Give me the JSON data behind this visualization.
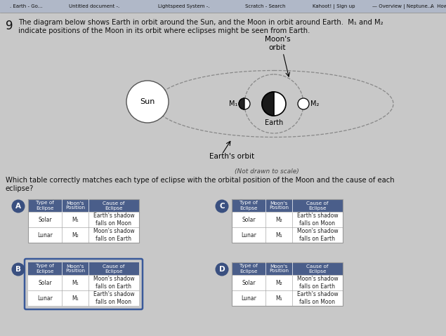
{
  "bg_color": "#c8c8c8",
  "question_num": "9",
  "question_text": "The diagram below shows Earth in orbit around the Sun, and the Moon in orbit around Earth.  M₁ and M₂\nindicate positions of the Moon in its orbit where eclipses might be seen from Earth.",
  "question2_text": "Which table correctly matches each type of eclipse with the orbital position of the Moon and the cause of each\neclipse?",
  "diagram_caption": "(Not drawn to scale)",
  "sun_label": "Sun",
  "earth_label": "Earth",
  "m1_label": "M₁",
  "m2_label": "M₂",
  "moons_orbit_label": "Moon's\norbit",
  "earths_orbit_label": "Earth's orbit",
  "tables": {
    "A": {
      "label": "A",
      "highlighted": false,
      "headers": [
        "Type of\nEclipse",
        "Moon's\nPosition",
        "Cause of\nEclipse"
      ],
      "rows": [
        [
          "Solar",
          "M₁",
          "Earth's shadow\nfalls on Moon"
        ],
        [
          "Lunar",
          "M₂",
          "Moon's shadow\nfalls on Earth"
        ]
      ]
    },
    "B": {
      "label": "B",
      "highlighted": true,
      "headers": [
        "Type of\nEclipse",
        "Moon's\nPosition",
        "Cause of\nEclipse"
      ],
      "rows": [
        [
          "Solar",
          "M₁",
          "Moon's shadow\nfalls on Earth"
        ],
        [
          "Lunar",
          "M₁",
          "Earth's shadow\nfalls on Moon"
        ]
      ]
    },
    "C": {
      "label": "C",
      "highlighted": false,
      "headers": [
        "Type of\nEclipse",
        "Moon's\nPosition",
        "Cause of\nEclipse"
      ],
      "rows": [
        [
          "Solar",
          "M₂",
          "Earth's shadow\nfalls on Moon"
        ],
        [
          "Lunar",
          "M₁",
          "Moon's shadow\nfalls on Earth"
        ]
      ]
    },
    "D": {
      "label": "D",
      "highlighted": false,
      "headers": [
        "Type of\nEclipse",
        "Moon's\nPosition",
        "Cause of\nEclipse"
      ],
      "rows": [
        [
          "Solar",
          "M₂",
          "Moon's shadow\nfalls on Earth"
        ],
        [
          "Lunar",
          "M₁",
          "Earth's shadow\nfalls on Moon"
        ]
      ]
    }
  },
  "header_bar_color": "#4a5e8a",
  "header_text_color": "#ffffff",
  "highlight_border_color": "#3a5a9a",
  "normal_border_color": "#999999",
  "tab_color": "#3a5080"
}
